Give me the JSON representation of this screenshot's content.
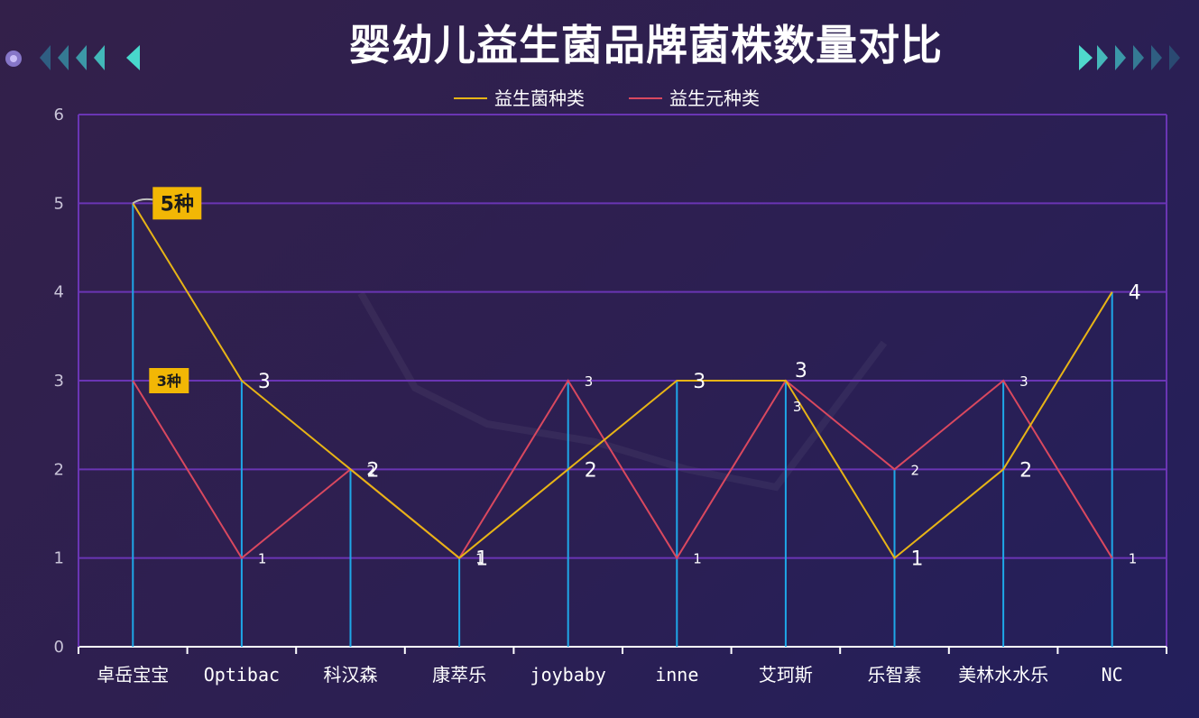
{
  "title": "婴幼儿益生菌品牌菌株数量对比",
  "colors": {
    "probiotic": "#e7b416",
    "prebiotic": "#d9485f",
    "stem": "#1ea7e8",
    "grid": "#6a35b4",
    "badge": "#f2b705"
  },
  "chart_data": {
    "type": "line",
    "categories": [
      "卓岳宝宝",
      "Optibac",
      "科汉森",
      "康萃乐",
      "joybaby",
      "inne",
      "艾珂斯",
      "乐智素",
      "美林水水乐",
      "NC"
    ],
    "series": [
      {
        "name": "益生菌种类",
        "values": [
          5,
          3,
          2,
          1,
          2,
          3,
          3,
          1,
          2,
          4
        ]
      },
      {
        "name": "益生元种类",
        "values": [
          3,
          1,
          2,
          1,
          3,
          1,
          3,
          2,
          3,
          1
        ]
      }
    ],
    "ylim": [
      0,
      6
    ],
    "yticks": [
      0,
      1,
      2,
      3,
      4,
      5,
      6
    ],
    "grid": true,
    "legend": "top-center",
    "annotations": [
      {
        "series": 0,
        "index": 0,
        "text": "5种"
      },
      {
        "series": 1,
        "index": 0,
        "text": "3种"
      }
    ]
  }
}
